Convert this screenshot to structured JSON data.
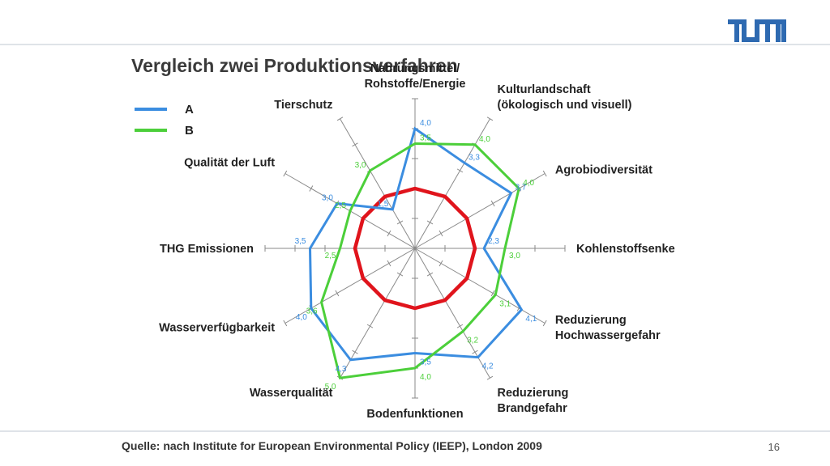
{
  "title": "Vergleich zwei Produktionsverfahren",
  "footer": {
    "source": "Quelle: nach Institute for European Environmental Policy  (IEEP), London 2009",
    "page_number": "16"
  },
  "logo": {
    "text": "TUM",
    "color": "#2e6ab1"
  },
  "legend": [
    {
      "label": "A",
      "color": "#3b8de0"
    },
    {
      "label": "B",
      "color": "#4ccf3a"
    }
  ],
  "chart_data": {
    "type": "radar",
    "max": 5,
    "ticks": [
      1,
      2,
      3,
      4,
      5
    ],
    "reference": {
      "value": 2,
      "color": "#e0141c"
    },
    "axes": [
      {
        "label": [
          "Nahrungsmittel/",
          "Rohstoffe/Energie"
        ],
        "a_label": "4,0",
        "b_label": "3,5"
      },
      {
        "label": [
          "Kulturlandschaft",
          "(ökologisch und visuell)"
        ],
        "a_label": "3,3",
        "b_label": "4,0"
      },
      {
        "label": [
          "Agrobiodiversität"
        ],
        "a_label": "3,7",
        "b_label": "4,0"
      },
      {
        "label": [
          "Kohlenstoffsenke"
        ],
        "a_label": "2,3",
        "b_label": "3,0"
      },
      {
        "label": [
          "Reduzierung",
          "Hochwassergefahr"
        ],
        "a_label": "4,1",
        "b_label": "3,1"
      },
      {
        "label": [
          "Reduzierung",
          "Brandgefahr"
        ],
        "a_label": "4,2",
        "b_label": "3,2"
      },
      {
        "label": [
          "Bodenfunktionen"
        ],
        "a_label": "3,5",
        "b_label": "4,0"
      },
      {
        "label": [
          "Wasserqualität"
        ],
        "a_label": "4,3",
        "b_label": "5,0"
      },
      {
        "label": [
          "Wasserverfügbarkeit"
        ],
        "a_label": "4,0",
        "b_label": "3,6"
      },
      {
        "label": [
          "THG Emissionen"
        ],
        "a_label": "3,5",
        "b_label": "2,5"
      },
      {
        "label": [
          "Qualität der Luft"
        ],
        "a_label": "3,0",
        "b_label": "2,5"
      },
      {
        "label": [
          "Tierschutz"
        ],
        "a_label": "1,5",
        "b_label": "3,0"
      }
    ],
    "series": [
      {
        "name": "A",
        "color": "#3b8de0",
        "values": [
          4.0,
          3.3,
          3.7,
          2.3,
          4.1,
          4.2,
          3.5,
          4.3,
          4.0,
          3.5,
          3.0,
          1.5
        ]
      },
      {
        "name": "B",
        "color": "#4ccf3a",
        "values": [
          3.5,
          4.0,
          4.0,
          3.0,
          3.1,
          3.2,
          4.0,
          5.0,
          3.6,
          2.5,
          2.5,
          3.0
        ]
      }
    ]
  }
}
